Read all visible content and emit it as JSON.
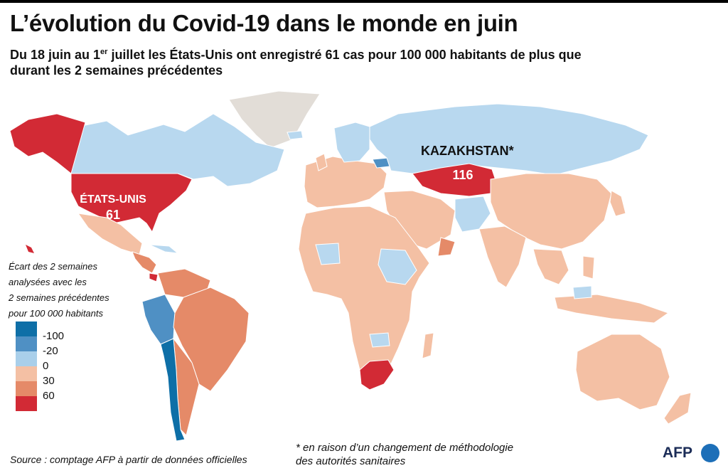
{
  "title": "L’évolution du Covid-19 dans le monde en juin",
  "subtitle": {
    "part1": "Du 18 juin au 1",
    "sup": "er",
    "part2": " juillet les États-Unis ont enregistré 61 cas pour 100 000 habitants de plus que durant les 2 semaines précédentes"
  },
  "legend": {
    "title_lines": [
      "Écart des 2 semaines",
      "analysées avec les",
      "2 semaines précédentes",
      "pour 100 000 habitants"
    ],
    "items": [
      {
        "label": "-100",
        "color": "#0e6fa7"
      },
      {
        "label": "-20",
        "color": "#4f90c4"
      },
      {
        "label": "0",
        "color": "#a9cfea"
      },
      {
        "label": "30",
        "color": "#f4c0a4"
      },
      {
        "label": "60",
        "color": "#e58a68"
      },
      {
        "label": "",
        "color": "#d22a35"
      }
    ]
  },
  "callouts": {
    "usa": {
      "name": "ÉTATS-UNIS",
      "value": "61"
    },
    "kazakhstan": {
      "name": "KAZAKHSTAN*",
      "value": "116"
    }
  },
  "source": "Source : comptage AFP à partir de données officielles",
  "note_lines": [
    "* en raison d’un changement de méthodologie",
    "des autorités sanitaires"
  ],
  "logo": "AFP",
  "colors": {
    "no_data": "#e2ddd7",
    "light_blue": "#b8d8ef",
    "mid_blue": "#4f90c4",
    "dark_blue": "#0e6fa7",
    "light_salmon": "#f4c0a4",
    "salmon": "#e58a68",
    "red": "#d22a35"
  }
}
